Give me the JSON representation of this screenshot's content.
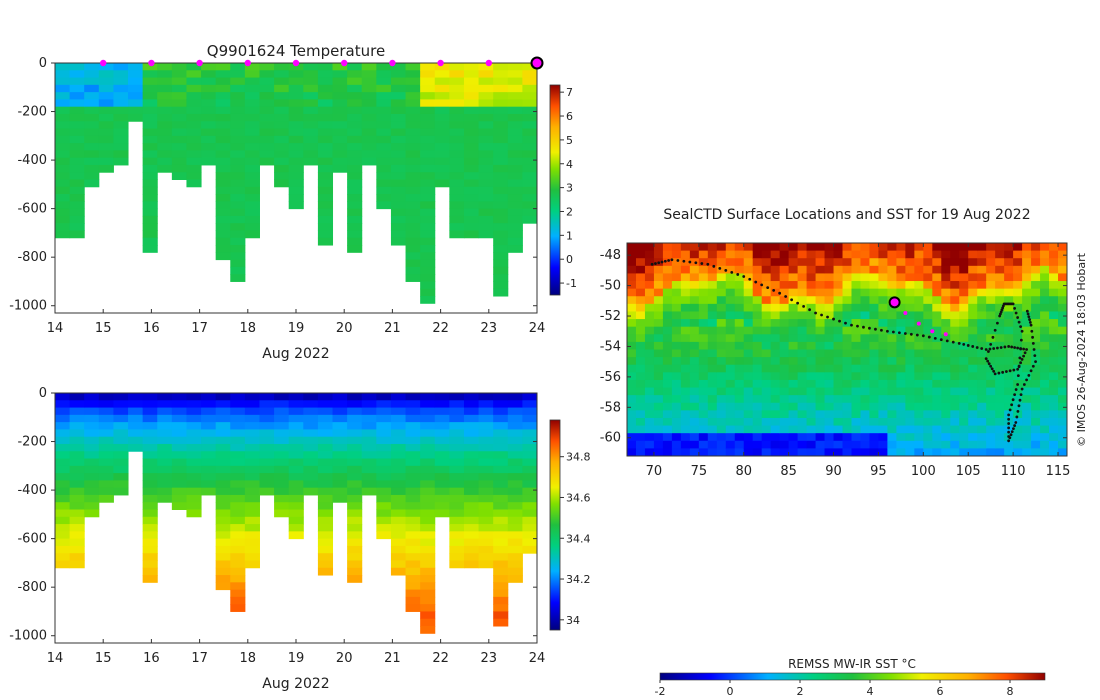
{
  "chart_data": [
    {
      "type": "heatmap",
      "name": "temperature-profile",
      "title": "Q9901624  Temperature",
      "xlabel": "Aug 2022",
      "ylabel": "",
      "xlim": [
        14,
        24
      ],
      "ylim": [
        -1030,
        0
      ],
      "xticks": [
        "14",
        "15",
        "16",
        "17",
        "18",
        "19",
        "20",
        "21",
        "22",
        "23",
        "24"
      ],
      "yticks": [
        "0",
        "-200",
        "-400",
        "-600",
        "-800",
        "-1000"
      ],
      "colorbar": {
        "min": -1.5,
        "max": 7.3,
        "ticks": [
          "-1",
          "0",
          "1",
          "2",
          "3",
          "4",
          "5",
          "6",
          "7"
        ]
      },
      "surface_markers_x": [
        15,
        16,
        17,
        18,
        19,
        20,
        21,
        22,
        23
      ],
      "latest_marker_x": 24,
      "profile_depths_m": [
        700,
        700,
        500,
        430,
        420,
        230,
        760,
        430,
        460,
        500,
        400,
        800,
        890,
        700,
        400,
        500,
        600,
        400,
        740,
        430,
        760,
        400,
        600,
        750,
        900,
        980,
        500,
        700,
        720,
        700,
        950,
        780,
        640
      ]
    },
    {
      "type": "heatmap",
      "name": "salinity-profile",
      "title": "",
      "xlabel": "Aug 2022",
      "ylabel": "",
      "xlim": [
        14,
        24
      ],
      "ylim": [
        -1030,
        0
      ],
      "xticks": [
        "14",
        "15",
        "16",
        "17",
        "18",
        "19",
        "20",
        "21",
        "22",
        "23",
        "24"
      ],
      "yticks": [
        "0",
        "-200",
        "-400",
        "-600",
        "-800",
        "-1000"
      ],
      "colorbar": {
        "min": 33.95,
        "max": 34.98,
        "ticks": [
          "34",
          "34.2",
          "34.4",
          "34.6",
          "34.8"
        ]
      }
    },
    {
      "type": "heatmap",
      "name": "sst-map",
      "title": "SealCTD Surface Locations and SST for 19 Aug 2022",
      "xlim": [
        67,
        116
      ],
      "ylim": [
        -61.2,
        -47.2
      ],
      "xticks": [
        "70",
        "75",
        "80",
        "85",
        "90",
        "95",
        "100",
        "105",
        "110",
        "115"
      ],
      "yticks": [
        "-48",
        "-50",
        "-52",
        "-54",
        "-56",
        "-58",
        "-60"
      ],
      "colorbar": {
        "label": "REMSS MW-IR SST °C",
        "min": -2,
        "max": 9,
        "ticks": [
          "-2",
          "0",
          "2",
          "4",
          "6",
          "8"
        ]
      },
      "current_position": {
        "lon": 96.8,
        "lat": -51.1
      },
      "credit": "© IMOS 26-Aug-2024 18:03 Hobart"
    }
  ]
}
